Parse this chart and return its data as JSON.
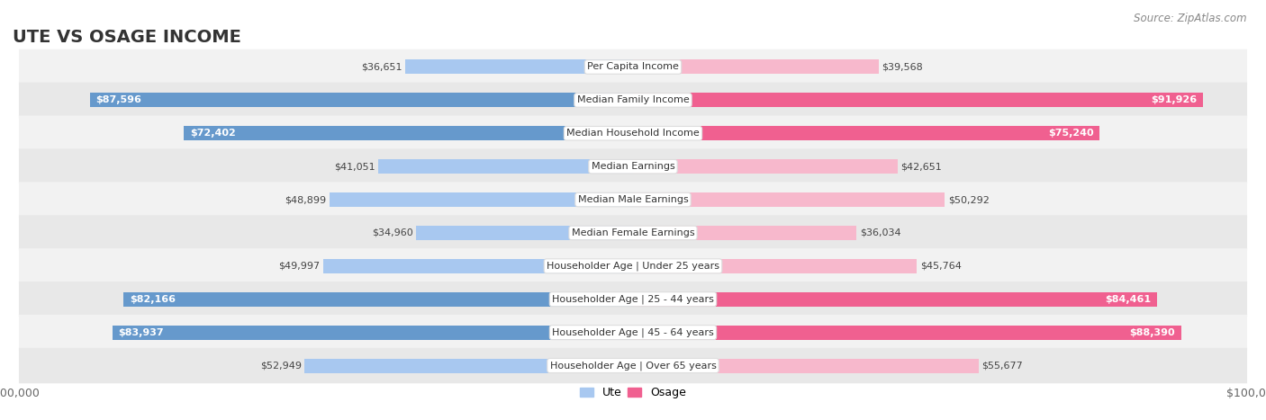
{
  "title": "UTE VS OSAGE INCOME",
  "source": "Source: ZipAtlas.com",
  "categories": [
    "Per Capita Income",
    "Median Family Income",
    "Median Household Income",
    "Median Earnings",
    "Median Male Earnings",
    "Median Female Earnings",
    "Householder Age | Under 25 years",
    "Householder Age | 25 - 44 years",
    "Householder Age | 45 - 64 years",
    "Householder Age | Over 65 years"
  ],
  "ute_values": [
    36651,
    87596,
    72402,
    41051,
    48899,
    34960,
    49997,
    82166,
    83937,
    52949
  ],
  "osage_values": [
    39568,
    91926,
    75240,
    42651,
    50292,
    36034,
    45764,
    84461,
    88390,
    55677
  ],
  "ute_color_light": "#a8c8f0",
  "ute_color_dark": "#6699cc",
  "osage_color_light": "#f7b8cc",
  "osage_color_dark": "#f06090",
  "ute_threshold": 60000,
  "osage_threshold": 60000,
  "row_bg_color1": "#f2f2f2",
  "row_bg_color2": "#e8e8e8",
  "max_value": 100000,
  "title_fontsize": 14,
  "label_fontsize": 8,
  "value_fontsize": 8,
  "bar_height": 0.62,
  "fig_bg_color": "#ffffff",
  "axis_label_color": "#666666",
  "legend_labels": [
    "Ute",
    "Osage"
  ]
}
